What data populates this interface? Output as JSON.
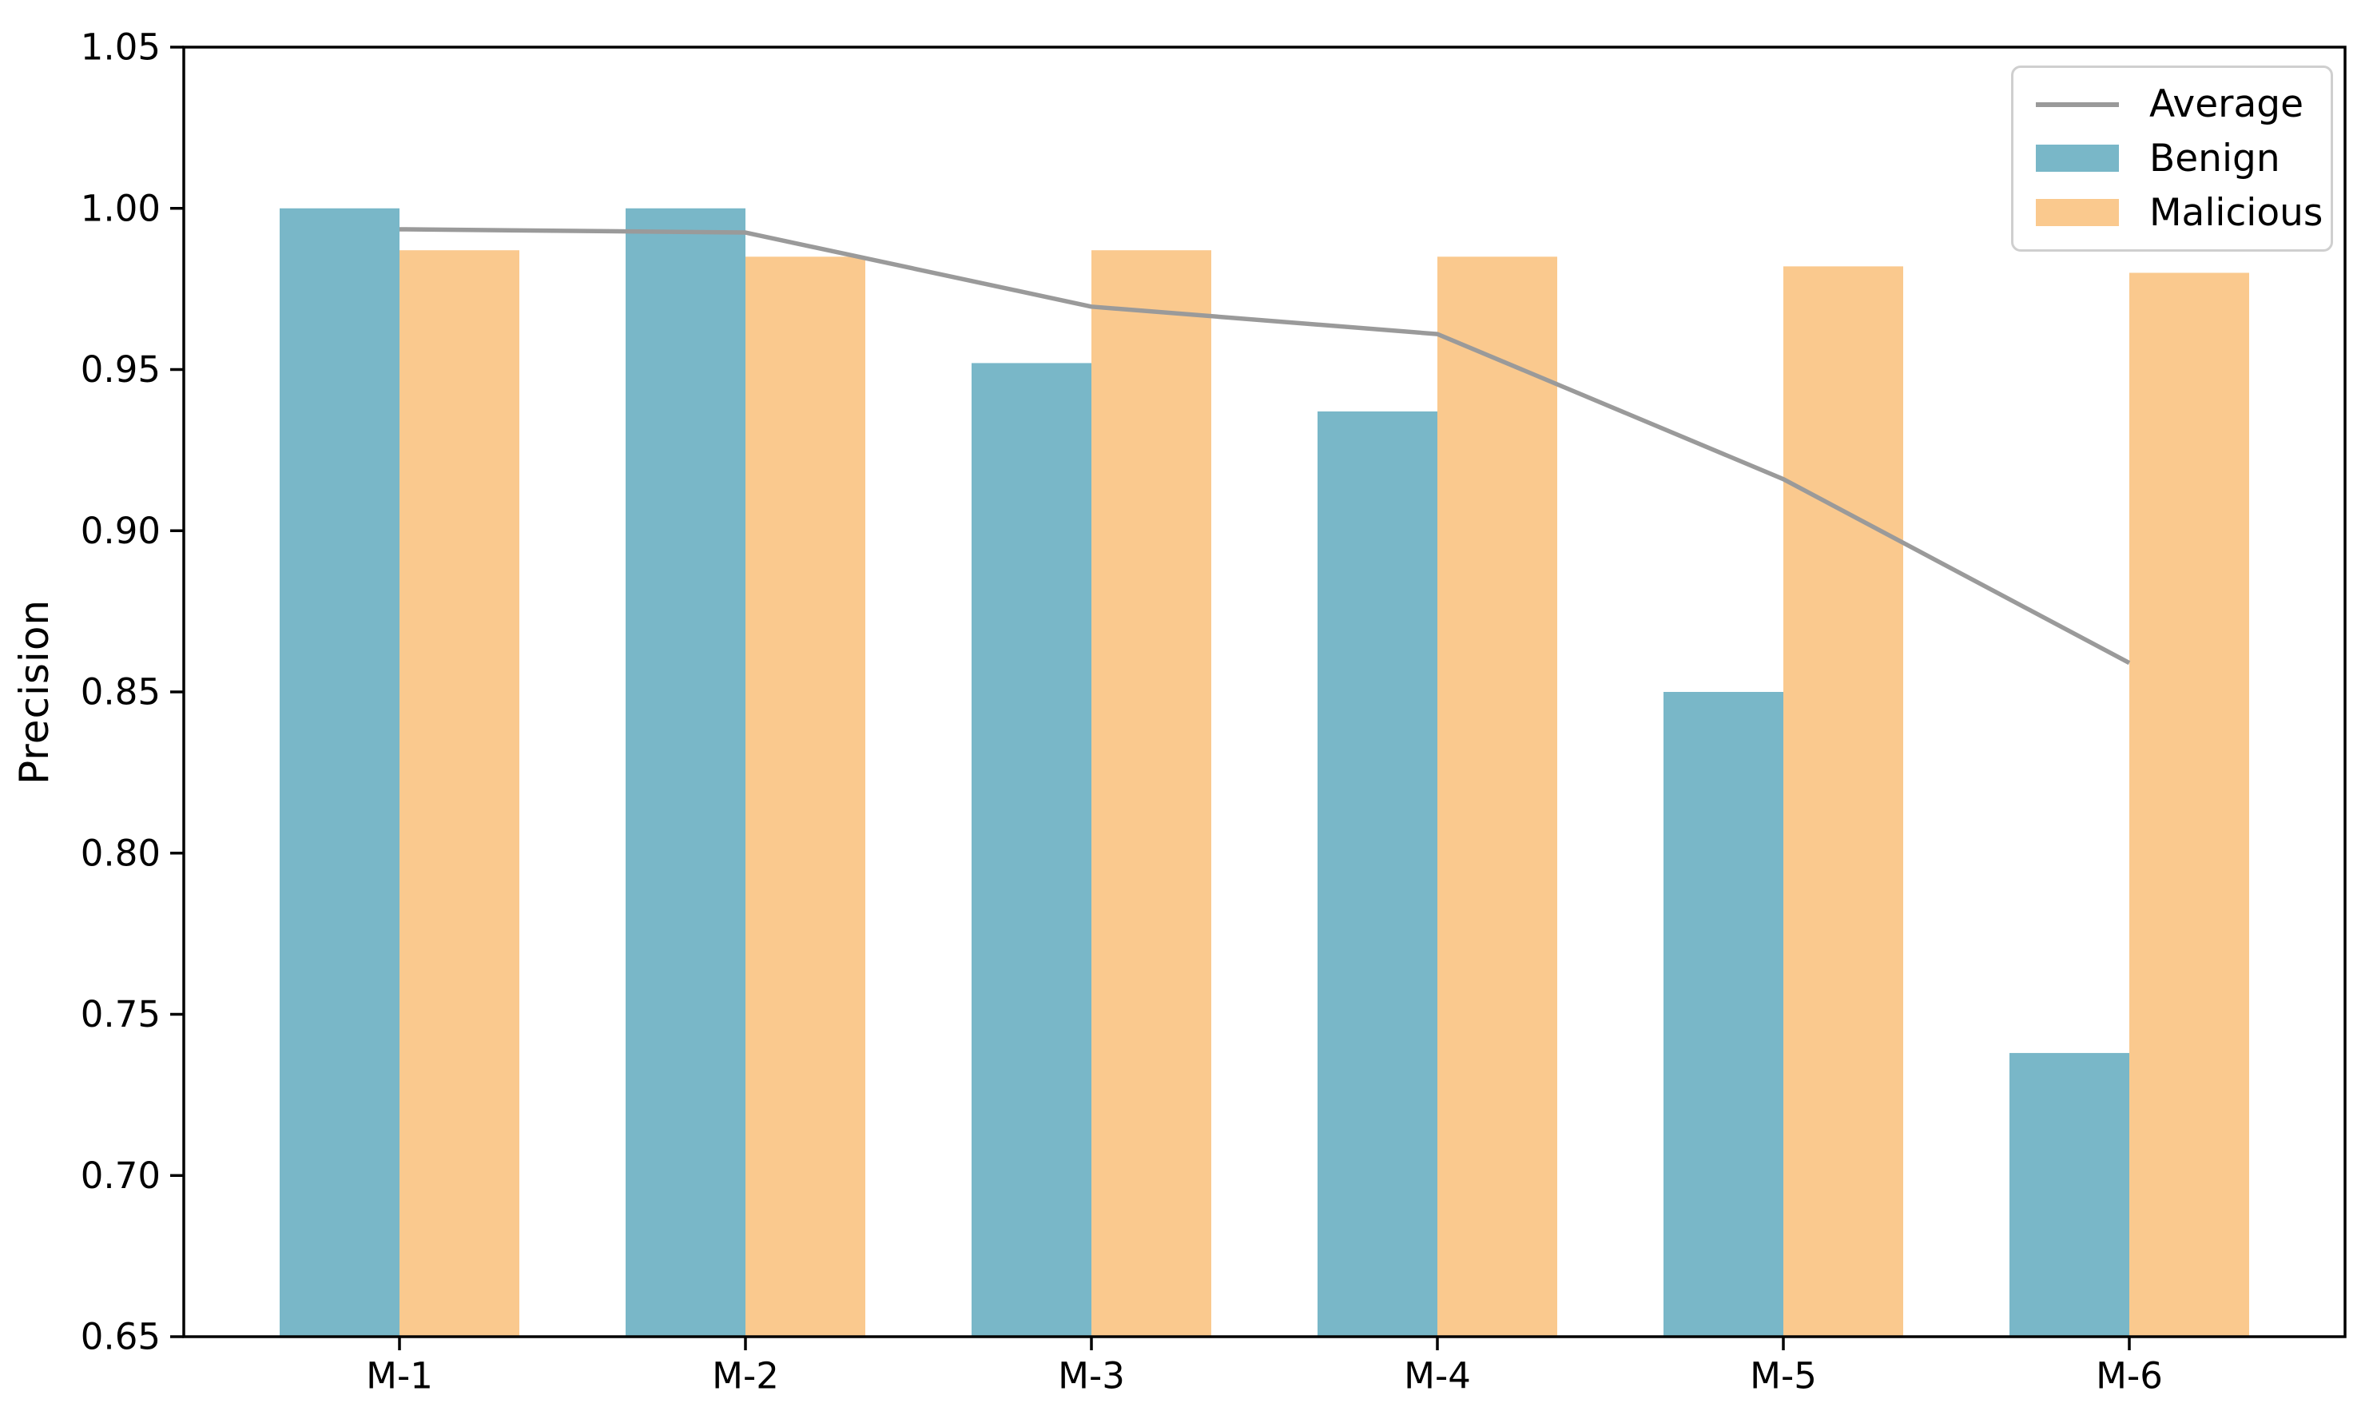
{
  "figure": {
    "background": "#ffffff",
    "axis_color": "#000000",
    "tick_label_color": "#000000"
  },
  "chart_data": {
    "type": "bar",
    "title": "",
    "xlabel": "",
    "ylabel": "Precision",
    "categories": [
      "M-1",
      "M-2",
      "M-3",
      "M-4",
      "M-5",
      "M-6"
    ],
    "series": [
      {
        "name": "Benign",
        "kind": "bar",
        "color": "#79b7c8",
        "values": [
          1.0,
          1.0,
          0.952,
          0.937,
          0.85,
          0.738
        ]
      },
      {
        "name": "Malicious",
        "kind": "bar",
        "color": "#fac98e",
        "values": [
          0.987,
          0.985,
          0.987,
          0.985,
          0.982,
          0.98
        ]
      },
      {
        "name": "Average",
        "kind": "line",
        "color": "#9a9a9a",
        "values": [
          0.9935,
          0.9925,
          0.9695,
          0.961,
          0.916,
          0.859
        ]
      }
    ],
    "ylim": [
      0.65,
      1.05
    ],
    "yticks": [
      0.65,
      0.7,
      0.75,
      0.8,
      0.85,
      0.9,
      0.95,
      1.0,
      1.05
    ],
    "ytick_labels": [
      "0.65",
      "0.70",
      "0.75",
      "0.80",
      "0.85",
      "0.90",
      "0.95",
      "1.00",
      "1.05"
    ],
    "grid": false,
    "legend": {
      "position": "upper right",
      "entries": [
        "Average",
        "Benign",
        "Malicious"
      ]
    }
  }
}
